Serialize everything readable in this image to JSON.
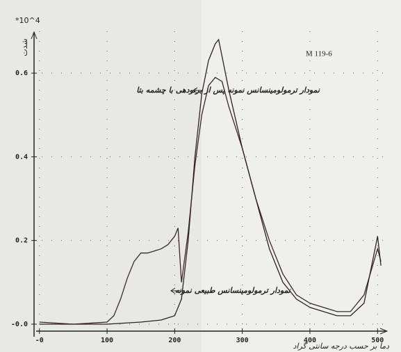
{
  "chart_data": {
    "type": "line",
    "y_unit": "*10^4",
    "y_label": "شدت",
    "x_label": "دما بر حسب درجه سانتی گراد",
    "sample": "M 119-6",
    "annotations": [
      "نمودار ترمولومینسانس نمونه پس از برتودهی با چشمه بتا",
      "نمودار ترمولومینسانس طبیعی نمونه"
    ],
    "xlim": [
      -10,
      510
    ],
    "ylim": [
      -0.02,
      0.7
    ],
    "xticks": [
      {
        "value": 0,
        "label": "-0"
      },
      100,
      200,
      300,
      400,
      500
    ],
    "yticks": [
      {
        "value": 0,
        "label": "-0.0"
      },
      0.2,
      0.4,
      0.6
    ],
    "grid": true,
    "series": [
      {
        "color": "#3b2a22",
        "x": [
          0,
          50,
          100,
          110,
          120,
          130,
          140,
          150,
          160,
          170,
          180,
          190,
          200,
          205,
          210,
          220,
          230,
          240,
          250,
          260,
          270,
          280,
          300,
          320,
          340,
          360,
          380,
          400,
          420,
          440,
          460,
          480,
          500,
          505
        ],
        "values": [
          0.005,
          0,
          0.005,
          0.02,
          0.06,
          0.11,
          0.15,
          0.17,
          0.17,
          0.175,
          0.18,
          0.19,
          0.21,
          0.23,
          0.1,
          0.22,
          0.38,
          0.5,
          0.57,
          0.59,
          0.58,
          0.52,
          0.42,
          0.3,
          0.2,
          0.12,
          0.07,
          0.05,
          0.04,
          0.03,
          0.03,
          0.07,
          0.18,
          0.15
        ]
      },
      {
        "color": "#2e2220",
        "x": [
          0,
          100,
          150,
          180,
          200,
          210,
          220,
          230,
          240,
          250,
          260,
          265,
          270,
          280,
          300,
          320,
          340,
          360,
          380,
          400,
          420,
          440,
          460,
          480,
          500,
          505
        ],
        "values": [
          0,
          0,
          0.005,
          0.01,
          0.02,
          0.06,
          0.2,
          0.4,
          0.55,
          0.63,
          0.67,
          0.68,
          0.64,
          0.56,
          0.42,
          0.3,
          0.18,
          0.1,
          0.06,
          0.04,
          0.03,
          0.02,
          0.02,
          0.05,
          0.21,
          0.14
        ]
      }
    ]
  }
}
